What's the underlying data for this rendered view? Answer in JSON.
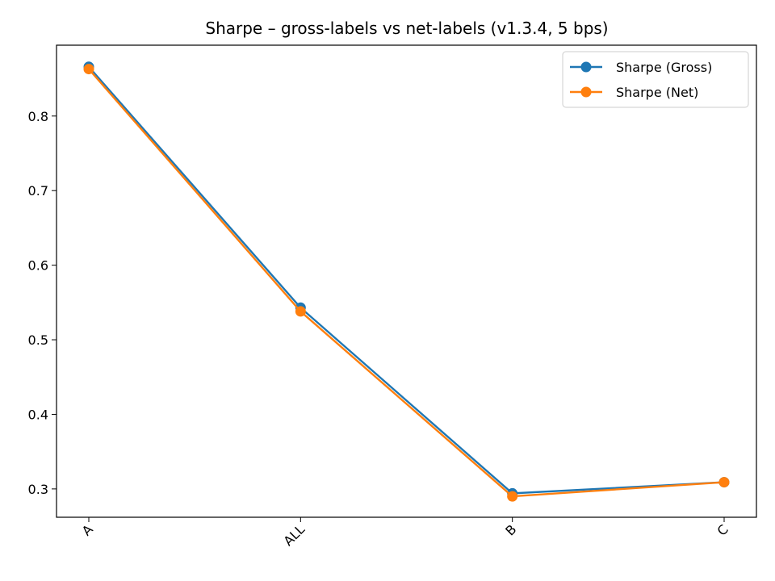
{
  "chart_data": {
    "type": "line",
    "title": "Sharpe – gross-labels vs net-labels (v1.3.4, 5 bps)",
    "xlabel": "",
    "ylabel": "",
    "categories": [
      "A",
      "ALL",
      "B",
      "C"
    ],
    "series": [
      {
        "name": "Sharpe (Gross)",
        "color": "#1f77b4",
        "values": [
          0.866,
          0.543,
          0.294,
          0.309
        ]
      },
      {
        "name": "Sharpe (Net)",
        "color": "#ff7f0e",
        "values": [
          0.863,
          0.538,
          0.29,
          0.309
        ]
      }
    ],
    "ylim": [
      0.262,
      0.895
    ],
    "yticks": [
      0.3,
      0.4,
      0.5,
      0.6,
      0.7,
      0.8
    ],
    "ytick_labels": [
      "0.3",
      "0.4",
      "0.5",
      "0.6",
      "0.7",
      "0.8"
    ],
    "xtick_rotation": 45,
    "grid": false,
    "legend_position": "top-right",
    "markers": "circle"
  }
}
